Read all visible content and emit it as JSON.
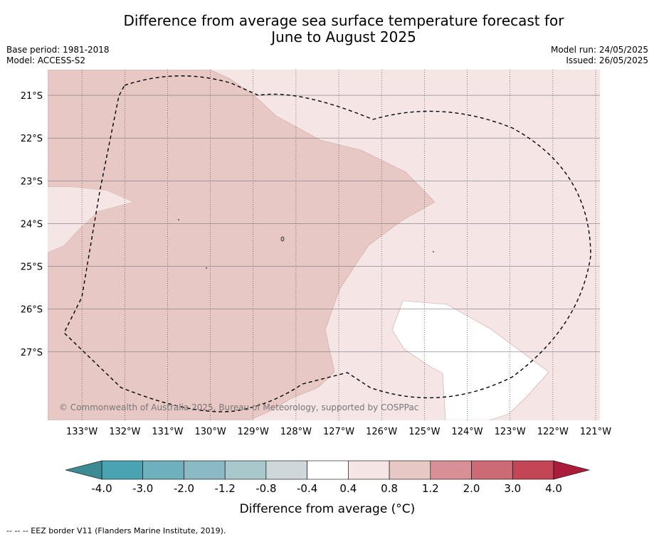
{
  "title_line1": "Difference from average sea surface temperature forecast for",
  "title_line2": "June to August 2025",
  "base_period": "Base period: 1981-2018",
  "model": "Model: ACCESS-S2",
  "model_run": "Model run: 24/05/2025",
  "issued": "Issued: 26/05/2025",
  "copyright": "© Commonwealth of Australia 2025, Bureau of Meteorology, supported by COSPPac",
  "footer_note": "-- -- -- EEZ border V11 (Flanders Marine Institute, 2019).",
  "map": {
    "lon_range": [
      -133.8,
      -120.9
    ],
    "lat_range": [
      -28.6,
      -20.4
    ],
    "lon_ticks": [
      "133°W",
      "132°W",
      "131°W",
      "130°W",
      "129°W",
      "128°W",
      "127°W",
      "126°W",
      "125°W",
      "124°W",
      "123°W",
      "122°W",
      "121°W"
    ],
    "lat_ticks": [
      "21°S",
      "22°S",
      "23°S",
      "24°S",
      "25°S",
      "26°S",
      "27°S"
    ]
  },
  "colorbar": {
    "label": "Difference from average (°C)",
    "tick_labels": [
      "-4.0",
      "-3.0",
      "-2.0",
      "-1.2",
      "-0.8",
      "-0.4",
      "0.4",
      "0.8",
      "1.2",
      "2.0",
      "3.0",
      "4.0"
    ],
    "colors": [
      "#4aa3b2",
      "#6eb0bd",
      "#8bb9c4",
      "#a9c8cc",
      "#ced8da",
      "#ffffff",
      "#f5e6e5",
      "#e8c8c4",
      "#d98f96",
      "#cc6b76",
      "#c24656"
    ],
    "under_color": "#3b8a94",
    "over_color": "#aa1c3a"
  },
  "colors": {
    "anomaly_0_4_to_0_8": "#f5e6e5",
    "anomaly_0_8_to_1_2": "#e8c8c4",
    "anomaly_neutral": "#ffffff"
  }
}
